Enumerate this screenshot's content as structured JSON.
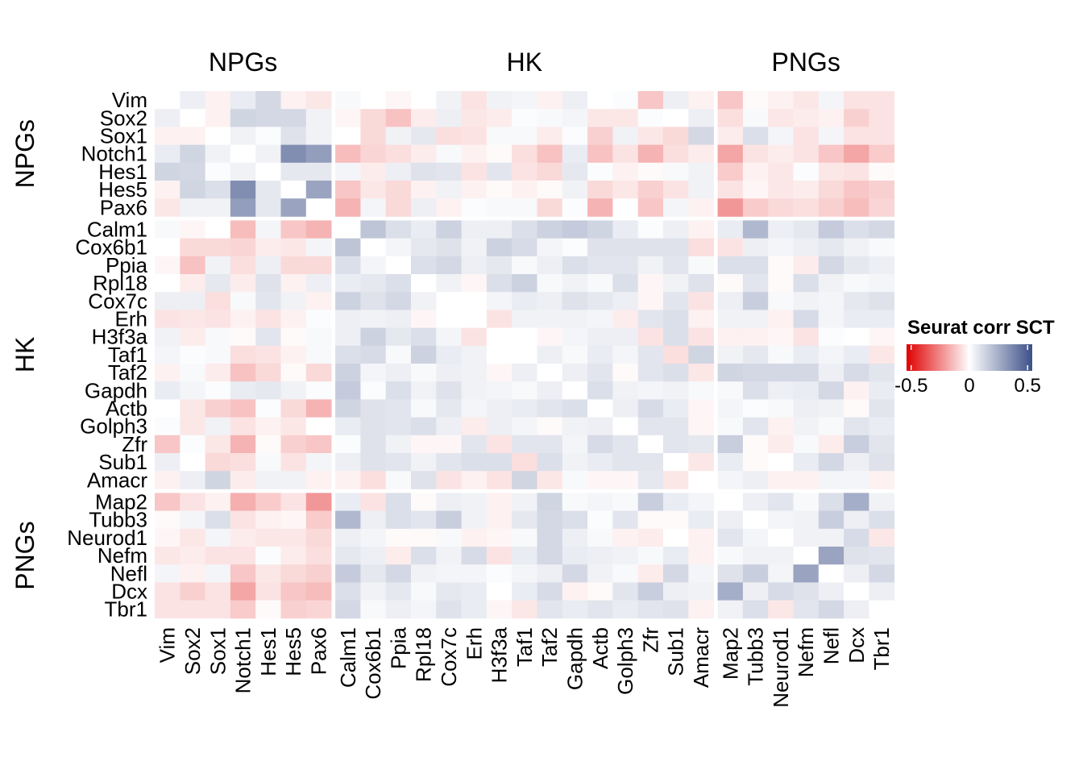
{
  "chart_data": {
    "type": "heatmap",
    "title": "",
    "legend": {
      "title": "Seurat corr SCT",
      "ticks": [
        "-0.5",
        "0",
        "0.5"
      ],
      "tick_values": [
        -0.5,
        0,
        0.5
      ],
      "range": [
        -0.54,
        0.54
      ],
      "placement": "right",
      "low_color": "#E00000",
      "mid_color": "#FFFFFF",
      "high_color": "#3C5088"
    },
    "groups": [
      {
        "name": "NPGs",
        "genes": [
          "Vim",
          "Sox2",
          "Sox1",
          "Notch1",
          "Hes1",
          "Hes5",
          "Pax6"
        ]
      },
      {
        "name": "HK",
        "genes": [
          "Calm1",
          "Cox6b1",
          "Ppia",
          "Rpl18",
          "Cox7c",
          "Erh",
          "H3f3a",
          "Taf1",
          "Taf2",
          "Gapdh",
          "Actb",
          "Golph3",
          "Zfr",
          "Sub1",
          "Amacr"
        ]
      },
      {
        "name": "PNGs",
        "genes": [
          "Map2",
          "Tubb3",
          "Neurod1",
          "Nefm",
          "Nefl",
          "Dcx",
          "Tbr1"
        ]
      }
    ],
    "values": [
      [
        0,
        0.05,
        -0.03,
        0.06,
        0.12,
        -0.03,
        -0.05,
        0.02,
        0,
        -0.02,
        0,
        0.04,
        -0.06,
        0.04,
        0.03,
        -0.03,
        0.05,
        0,
        0.01,
        -0.12,
        0.05,
        -0.03,
        -0.12,
        -0.01,
        -0.03,
        -0.05,
        0.03,
        -0.06,
        -0.06
      ],
      [
        0.05,
        0,
        -0.03,
        0.13,
        0.12,
        0.12,
        0.04,
        -0.02,
        -0.08,
        -0.13,
        -0.04,
        0.05,
        -0.05,
        -0.04,
        0.01,
        0.02,
        0.03,
        -0.05,
        -0.05,
        0.01,
        0,
        0.05,
        -0.07,
        0.02,
        -0.05,
        -0.04,
        -0.03,
        -0.1,
        -0.06
      ],
      [
        -0.03,
        -0.03,
        0,
        0.04,
        0.01,
        0.09,
        0.04,
        0,
        -0.08,
        0.04,
        0.07,
        -0.07,
        -0.06,
        0.02,
        0.02,
        -0.04,
        0.01,
        -0.1,
        0.04,
        -0.05,
        -0.08,
        0.12,
        -0.04,
        0.1,
        0.03,
        -0.06,
        0.03,
        -0.06,
        -0.06
      ],
      [
        0.06,
        0.13,
        0.04,
        0,
        0.04,
        0.35,
        0.3,
        -0.14,
        -0.09,
        -0.07,
        -0.04,
        0.02,
        -0.03,
        -0.01,
        -0.07,
        -0.13,
        0.06,
        -0.13,
        -0.06,
        -0.16,
        -0.07,
        -0.04,
        -0.19,
        -0.06,
        -0.04,
        -0.06,
        -0.12,
        -0.19,
        -0.11
      ],
      [
        0.13,
        0.12,
        0.01,
        0.04,
        0,
        0.07,
        0.07,
        0.03,
        -0.04,
        0.05,
        0.09,
        0.08,
        -0.06,
        0.08,
        -0.06,
        -0.08,
        0.07,
        0.01,
        -0.03,
        -0.01,
        0.02,
        0.04,
        -0.11,
        -0.03,
        -0.05,
        0.01,
        -0.05,
        -0.06,
        -0.01
      ],
      [
        -0.03,
        0.13,
        0.1,
        0.35,
        0.07,
        0,
        0.28,
        -0.12,
        -0.05,
        -0.08,
        -0.03,
        0.04,
        -0.03,
        -0.01,
        -0.03,
        -0.01,
        0.04,
        -0.08,
        -0.05,
        -0.1,
        -0.06,
        0.04,
        -0.06,
        -0.02,
        -0.05,
        -0.04,
        -0.08,
        -0.12,
        -0.1
      ],
      [
        -0.05,
        0.04,
        0.04,
        0.3,
        0.07,
        0.28,
        0,
        -0.16,
        0.03,
        -0.08,
        0.05,
        -0.03,
        0.01,
        0.02,
        0.02,
        -0.08,
        0.01,
        -0.16,
        0,
        -0.12,
        0.03,
        -0.03,
        -0.22,
        -0.11,
        -0.08,
        -0.07,
        -0.1,
        -0.14,
        -0.09
      ],
      [
        0.02,
        -0.02,
        0,
        -0.14,
        0.03,
        -0.12,
        -0.16,
        0,
        0.18,
        0.1,
        0.06,
        0.14,
        0.05,
        0.05,
        0.1,
        0.14,
        0.16,
        0.13,
        0.06,
        0.01,
        0.05,
        -0.03,
        0.06,
        0.22,
        0.05,
        0.07,
        0.16,
        0.1,
        0.12
      ],
      [
        0,
        -0.08,
        -0.08,
        -0.09,
        -0.04,
        -0.05,
        0.03,
        0.18,
        0,
        0.03,
        0.07,
        0.09,
        0.04,
        0.14,
        0.11,
        0.03,
        0.01,
        0.09,
        0.09,
        0.09,
        0.09,
        -0.07,
        -0.06,
        0.05,
        0.03,
        0.05,
        0.07,
        0.04,
        0.02
      ],
      [
        -0.02,
        -0.13,
        0.04,
        -0.07,
        0.05,
        -0.08,
        -0.08,
        0.1,
        0.03,
        0,
        0.1,
        0.12,
        0.05,
        0.07,
        0.02,
        0.05,
        0.1,
        0.08,
        0.08,
        0.04,
        0.08,
        0.02,
        0.1,
        0.1,
        -0.01,
        -0.04,
        0.12,
        0.07,
        0.05
      ],
      [
        0,
        -0.04,
        0.07,
        -0.04,
        0.09,
        -0.03,
        0.05,
        0.06,
        0.07,
        0.1,
        0,
        0.04,
        -0.02,
        0.1,
        0.14,
        0.02,
        0.04,
        0.02,
        0.1,
        -0.02,
        0.04,
        0.09,
        -0.01,
        0.08,
        -0.01,
        0.1,
        0.04,
        0.02,
        0.03
      ],
      [
        0.05,
        0.05,
        -0.07,
        0.02,
        0.08,
        0.04,
        -0.03,
        0.14,
        0.09,
        0.12,
        0.04,
        0,
        0,
        0.03,
        0.06,
        0.05,
        0.09,
        0.07,
        0.05,
        -0.02,
        0.08,
        -0.06,
        0.05,
        0.15,
        0.02,
        0.04,
        0.03,
        0.07,
        0.09
      ],
      [
        -0.06,
        -0.05,
        -0.06,
        -0.03,
        -0.06,
        -0.03,
        0.01,
        0.05,
        0.04,
        0.05,
        -0.02,
        0,
        0,
        -0.06,
        0.04,
        0.04,
        0.04,
        0.03,
        -0.04,
        0.08,
        0.1,
        -0.03,
        0.04,
        0.04,
        -0.03,
        0.11,
        0.03,
        0.06,
        0.06
      ],
      [
        0.04,
        -0.04,
        0.02,
        -0.01,
        0.08,
        -0.01,
        0.02,
        0.05,
        0.14,
        0.07,
        0.1,
        0.03,
        -0.06,
        0,
        0,
        -0.02,
        0.03,
        0.05,
        0.05,
        -0.06,
        0.1,
        -0.06,
        -0.03,
        -0.03,
        -0.02,
        -0.06,
        0.01,
        0,
        -0.02
      ],
      [
        0.03,
        0.01,
        0.02,
        -0.07,
        -0.06,
        -0.03,
        0.02,
        0.1,
        0.11,
        0.02,
        0.14,
        0.06,
        0.04,
        0,
        0,
        0.05,
        0.02,
        0.06,
        0.03,
        0.08,
        -0.07,
        0.13,
        0.04,
        0.07,
        0.02,
        0.06,
        0.03,
        0.06,
        -0.05
      ],
      [
        -0.03,
        0.02,
        -0.04,
        -0.13,
        -0.08,
        -0.01,
        -0.08,
        0.14,
        0.03,
        0.05,
        0.02,
        0.05,
        0.04,
        -0.02,
        0.05,
        0,
        0.05,
        0.08,
        -0.01,
        0.08,
        0.1,
        -0.05,
        0.13,
        0.12,
        0.12,
        0.12,
        0.05,
        0.11,
        0.08
      ],
      [
        0.06,
        0.03,
        0.01,
        0.06,
        0.07,
        0.04,
        0.01,
        0.16,
        0.01,
        0.1,
        0.04,
        0.09,
        0.04,
        0.03,
        0.02,
        0.05,
        0,
        0.1,
        0.04,
        0.03,
        0.04,
        0.02,
        0.02,
        0.1,
        0.05,
        0.06,
        0.12,
        -0.03,
        0.06
      ],
      [
        0,
        -0.05,
        -0.1,
        -0.13,
        0.01,
        -0.08,
        -0.16,
        0.13,
        0.09,
        0.08,
        0.02,
        0.07,
        0.03,
        0.05,
        0.06,
        0.08,
        0.1,
        0,
        0.05,
        0.11,
        0.06,
        -0.02,
        0.03,
        0.01,
        0.02,
        0.05,
        0.04,
        -0.01,
        0.08
      ],
      [
        0.01,
        -0.05,
        0.04,
        -0.06,
        -0.03,
        -0.05,
        0,
        0.06,
        0.09,
        0.08,
        0.1,
        0.05,
        -0.04,
        0.05,
        0.03,
        -0.01,
        0.04,
        0.05,
        0,
        0.08,
        0.08,
        -0.02,
        0.02,
        0.08,
        -0.03,
        0.04,
        0.02,
        0.08,
        0.06
      ],
      [
        -0.12,
        0.01,
        -0.05,
        -0.16,
        -0.01,
        -0.1,
        -0.12,
        0.01,
        0.09,
        0.04,
        -0.02,
        -0.02,
        0.08,
        -0.06,
        0.08,
        0.08,
        0.03,
        0.11,
        0.08,
        0,
        0.08,
        0.07,
        0.15,
        -0.01,
        -0.04,
        0.02,
        -0.04,
        0.15,
        0.08
      ],
      [
        0.05,
        0,
        -0.08,
        -0.07,
        0.02,
        -0.06,
        0.03,
        0.05,
        0.09,
        0.08,
        0.04,
        0.08,
        0.1,
        0.1,
        -0.07,
        0.1,
        0.04,
        0.06,
        0.08,
        0.08,
        0,
        -0.05,
        0.06,
        -0.01,
        0,
        0.06,
        0.12,
        0.05,
        0.09
      ],
      [
        -0.03,
        0.05,
        0.13,
        -0.04,
        0.04,
        0.04,
        -0.03,
        -0.03,
        -0.07,
        0.02,
        0.09,
        -0.06,
        -0.03,
        -0.06,
        0.13,
        -0.05,
        0.02,
        -0.02,
        -0.02,
        0.07,
        -0.05,
        0,
        0.03,
        0.05,
        -0.03,
        -0.03,
        0.03,
        0.03,
        -0.03
      ],
      [
        -0.12,
        -0.06,
        -0.03,
        -0.17,
        -0.11,
        -0.06,
        -0.22,
        0.06,
        -0.06,
        0.1,
        -0.01,
        0.05,
        0.04,
        -0.03,
        0.04,
        0.13,
        0.02,
        0.03,
        0.02,
        0.15,
        0.06,
        0.03,
        0,
        0.05,
        0.08,
        0.02,
        0.1,
        0.25,
        0.04
      ],
      [
        -0.01,
        0.03,
        0.1,
        -0.06,
        -0.03,
        -0.02,
        -0.11,
        0.22,
        0.05,
        0.1,
        0.08,
        0.15,
        0.04,
        -0.03,
        0.07,
        0.12,
        0.1,
        0.01,
        0.08,
        -0.01,
        -0.01,
        0.06,
        0.05,
        0,
        0.03,
        0.04,
        0.15,
        0.05,
        0.1
      ],
      [
        -0.02,
        -0.05,
        0.03,
        -0.04,
        -0.05,
        -0.05,
        -0.08,
        0.05,
        0.03,
        -0.01,
        -0.01,
        0.02,
        -0.03,
        -0.02,
        0.02,
        0.12,
        0.05,
        0.02,
        -0.03,
        -0.04,
        0,
        -0.03,
        0.08,
        0.03,
        0,
        0.04,
        0.04,
        0.11,
        -0.05
      ],
      [
        -0.05,
        -0.04,
        -0.06,
        -0.06,
        0.01,
        -0.04,
        -0.07,
        0.07,
        0.05,
        -0.04,
        0.1,
        0.04,
        0.11,
        -0.06,
        0.06,
        0.12,
        0.06,
        0.05,
        0.04,
        0.02,
        0.06,
        -0.03,
        0.02,
        0.04,
        0.04,
        0,
        0.28,
        0.09,
        0.08
      ],
      [
        0.03,
        -0.03,
        0.03,
        -0.12,
        -0.05,
        -0.08,
        -0.1,
        0.16,
        0.07,
        0.12,
        0.04,
        0.03,
        0.03,
        0.01,
        0.03,
        0.05,
        0.12,
        0.04,
        0.02,
        -0.04,
        0.12,
        0.03,
        0.09,
        0.15,
        0.03,
        0.28,
        0,
        0.05,
        0.12
      ],
      [
        -0.06,
        -0.1,
        -0.06,
        -0.19,
        -0.06,
        -0.12,
        -0.14,
        0.1,
        0.04,
        0.07,
        0.02,
        0.07,
        0.06,
        0,
        0.06,
        0.11,
        -0.03,
        -0.01,
        0.08,
        0.15,
        0.05,
        0.04,
        0.25,
        0.05,
        0.11,
        0.09,
        0.05,
        0,
        0.05
      ],
      [
        -0.06,
        -0.06,
        -0.06,
        -0.11,
        -0.01,
        -0.1,
        -0.09,
        0.12,
        0.02,
        0.05,
        0.03,
        0.09,
        0.06,
        -0.02,
        -0.05,
        0.08,
        0.06,
        0.08,
        0.06,
        0.08,
        0.09,
        -0.03,
        0.04,
        0.1,
        -0.05,
        0.08,
        0.12,
        0.05,
        0
      ]
    ]
  }
}
